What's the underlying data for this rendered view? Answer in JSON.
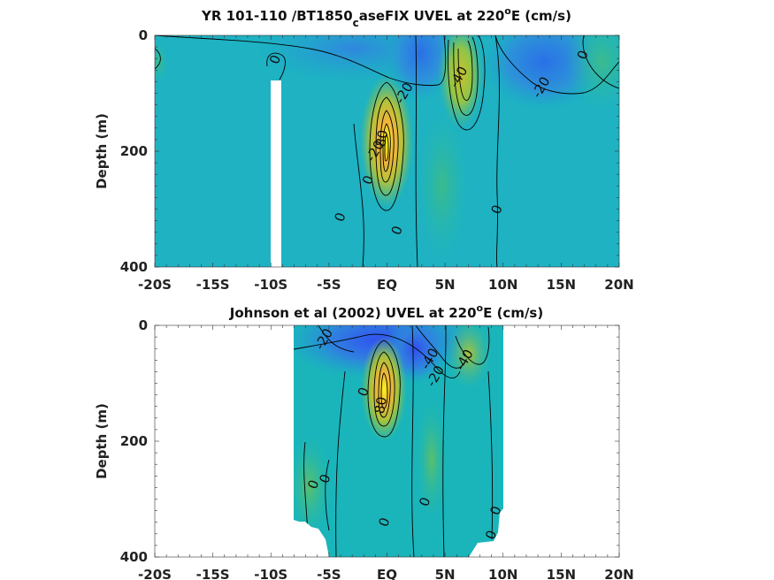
{
  "chart_data": [
    {
      "type": "heatmap",
      "title_main": "YR 101-110 /BT1850",
      "title_sub": "c",
      "title_rest": "aseFIX UVEL at 220",
      "title_sup": "o",
      "title_end": "E (cm/s)",
      "ylabel": "Depth (m)",
      "xlabel": "",
      "xlim": [
        -20,
        20
      ],
      "ylim": [
        0,
        400
      ],
      "y_reversed": true,
      "x_ticks": [
        -20,
        -15,
        -10,
        -5,
        0,
        5,
        10,
        15,
        20
      ],
      "x_tick_labels": [
        "-20S",
        "-15S",
        "-10S",
        "-5S",
        "EQ",
        "5N",
        "10N",
        "15N",
        "20N"
      ],
      "y_ticks": [
        0,
        200,
        400
      ],
      "y_tick_labels": [
        "0",
        "200",
        "400"
      ],
      "contour_labels": [
        {
          "text": "0",
          "lat": -9.6,
          "depth": 42
        },
        {
          "text": "-20",
          "lat": 1.5,
          "depth": 100
        },
        {
          "text": "-40",
          "lat": 6.2,
          "depth": 72
        },
        {
          "text": "-20",
          "lat": 13.3,
          "depth": 90
        },
        {
          "text": "0",
          "lat": 16.9,
          "depth": 34
        },
        {
          "text": "80",
          "lat": -0.4,
          "depth": 178
        },
        {
          "text": "-20",
          "lat": -1.0,
          "depth": 200
        },
        {
          "text": "0",
          "lat": -1.6,
          "depth": 250
        },
        {
          "text": "0",
          "lat": -4.0,
          "depth": 314
        },
        {
          "text": "0",
          "lat": 0.9,
          "depth": 337
        },
        {
          "text": "0",
          "lat": 9.5,
          "depth": 301
        }
      ],
      "blank_regions": [
        {
          "lat_from": -10.0,
          "lat_to": -9.2,
          "depth_from": 80,
          "depth_to": 400
        }
      ]
    },
    {
      "type": "heatmap",
      "title_main": "Johnson et al (2002) UVEL at 220",
      "title_sup": "o",
      "title_end": "E (cm/s)",
      "ylabel": "Depth (m)",
      "xlabel": "",
      "xlim": [
        -20,
        20
      ],
      "ylim": [
        0,
        400
      ],
      "y_reversed": true,
      "x_ticks": [
        -20,
        -15,
        -10,
        -5,
        0,
        5,
        10,
        15,
        20
      ],
      "x_tick_labels": [
        "-20S",
        "-15S",
        "-10S",
        "-5S",
        "EQ",
        "5N",
        "10N",
        "15N",
        "20N"
      ],
      "y_ticks": [
        0,
        200,
        400
      ],
      "y_tick_labels": [
        "0",
        "200",
        "400"
      ],
      "data_lat_range": [
        -8,
        10
      ],
      "contour_labels": [
        {
          "text": "-20",
          "lat": -5.4,
          "depth": 24
        },
        {
          "text": "-40",
          "lat": 3.7,
          "depth": 58
        },
        {
          "text": "-20",
          "lat": 4.2,
          "depth": 88
        },
        {
          "text": "-40",
          "lat": 6.7,
          "depth": 60
        },
        {
          "text": "0",
          "lat": -2.0,
          "depth": 115
        },
        {
          "text": "80",
          "lat": -0.5,
          "depth": 138
        },
        {
          "text": "0",
          "lat": -6.3,
          "depth": 275
        },
        {
          "text": "0",
          "lat": -5.3,
          "depth": 265
        },
        {
          "text": "0",
          "lat": 3.3,
          "depth": 305
        },
        {
          "text": "0",
          "lat": -0.2,
          "depth": 340
        },
        {
          "text": "0",
          "lat": 9.4,
          "depth": 320
        },
        {
          "text": "0",
          "lat": 9.0,
          "depth": 362
        }
      ]
    }
  ]
}
